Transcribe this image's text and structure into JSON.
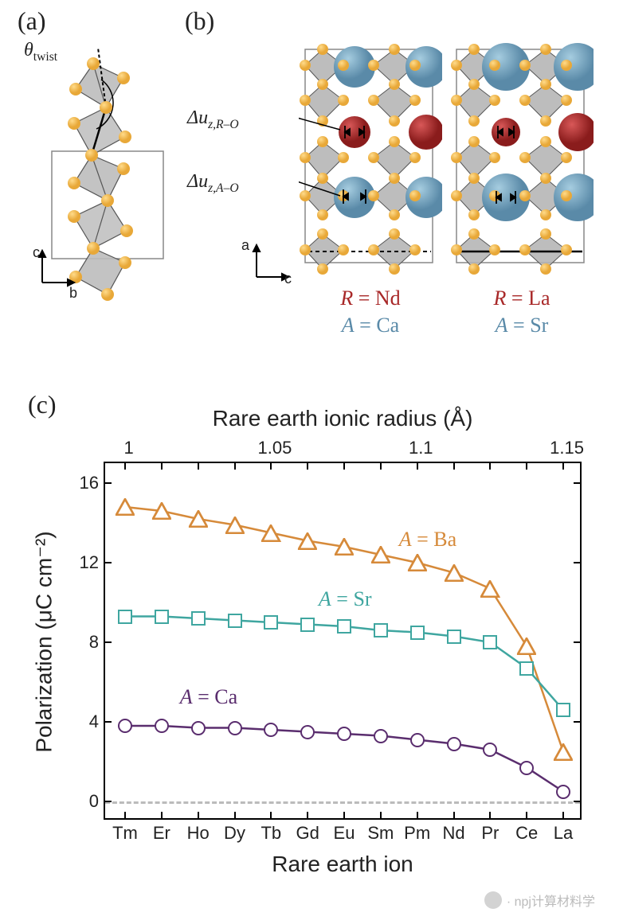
{
  "panels": {
    "a_label": "(a)",
    "b_label": "(b)",
    "c_label": "(c)"
  },
  "panel_a": {
    "theta_label": "θ",
    "theta_sub": "twist",
    "axes": {
      "v": "c",
      "h": "b"
    },
    "colors": {
      "vertex_sphere": "#e8a838",
      "face_fill": "#b8b8b8",
      "face_stroke": "#666",
      "box_stroke": "#888"
    }
  },
  "panel_b": {
    "du_RO_prefix": "Δu",
    "du_RO_sub": "z,R–O",
    "du_AO_prefix": "Δu",
    "du_AO_sub": "z,A–O",
    "axes": {
      "v": "a",
      "h": "c"
    },
    "structures": [
      {
        "R": "Nd",
        "A": "Ca"
      },
      {
        "R": "La",
        "A": "Sr"
      }
    ],
    "colors": {
      "R_sphere": "#a82828",
      "A_sphere": "#5b8fa8",
      "O_sphere": "#e8a838",
      "inner_sphere": "#9a9a9a",
      "face_fill": "#b0b0b0",
      "box_stroke": "#888",
      "R_text": "#a82828",
      "A_text": "#5a8aa8"
    }
  },
  "chart": {
    "type": "line+marker",
    "x_axis_bottom": {
      "title": "Rare earth ion",
      "categories": [
        "Tm",
        "Er",
        "Ho",
        "Dy",
        "Tb",
        "Gd",
        "Eu",
        "Sm",
        "Pm",
        "Nd",
        "Pr",
        "Ce",
        "La"
      ],
      "fontsize": 22
    },
    "x_axis_top": {
      "title": "Rare earth ionic radius (Å)",
      "ticks": [
        1.0,
        1.05,
        1.1,
        1.15
      ],
      "tick_positions_index": [
        0.1,
        4.1,
        8.1,
        12.1
      ],
      "fontsize": 22
    },
    "y_axis": {
      "title": "Polarization (μC cm⁻²)",
      "ticks": [
        0,
        4,
        8,
        12,
        16
      ],
      "lim": [
        -1,
        17
      ],
      "fontsize": 22
    },
    "series": [
      {
        "name": "A = Ba",
        "label_html": "<span class='italic'>A</span> = Ba",
        "marker": "triangle",
        "color": "#d68a3a",
        "values": [
          14.8,
          14.6,
          14.2,
          13.9,
          13.5,
          13.1,
          12.8,
          12.4,
          12.0,
          11.5,
          10.7,
          7.8,
          2.5
        ],
        "label_pos": {
          "x_index": 7.5,
          "y": 13.2
        }
      },
      {
        "name": "A = Sr",
        "label_html": "<span class='italic'>A</span> = Sr",
        "marker": "square",
        "color": "#3fa6a0",
        "values": [
          9.3,
          9.3,
          9.2,
          9.1,
          9.0,
          8.9,
          8.8,
          8.6,
          8.5,
          8.3,
          8.0,
          6.7,
          4.6
        ],
        "label_pos": {
          "x_index": 5.3,
          "y": 10.2
        }
      },
      {
        "name": "A = Ca",
        "label_html": "<span class='italic'>A</span> = Ca",
        "marker": "circle",
        "color": "#5a2d6e",
        "values": [
          3.8,
          3.8,
          3.7,
          3.7,
          3.6,
          3.5,
          3.4,
          3.3,
          3.1,
          2.9,
          2.6,
          1.7,
          0.5
        ],
        "label_pos": {
          "x_index": 1.5,
          "y": 5.3
        }
      }
    ],
    "zero_line_color": "#bbbbbb",
    "background": "#ffffff",
    "line_width": 2.5,
    "marker_size": 18
  },
  "watermark": {
    "text": "· npj计算材料学"
  }
}
